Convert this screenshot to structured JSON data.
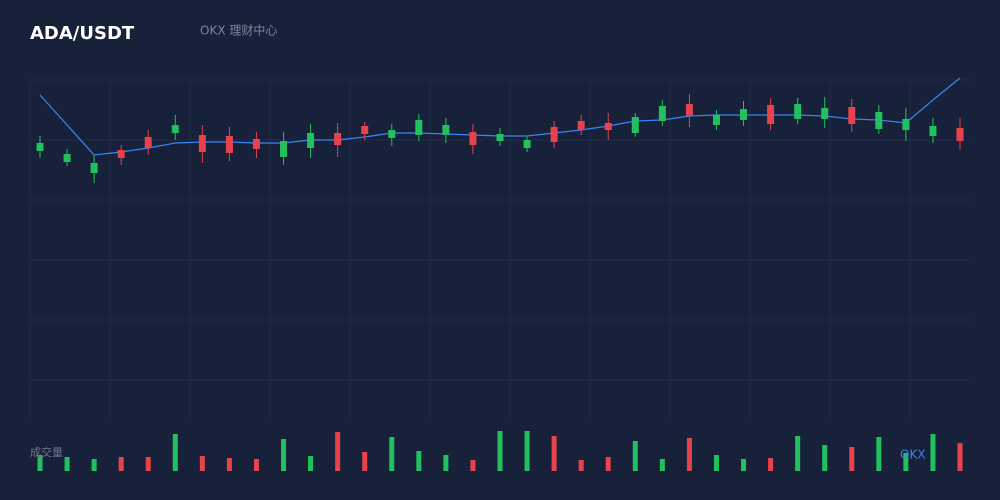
{
  "chart_data": {
    "type": "candlestick",
    "title": "ADA/USDT",
    "subtitle": "OKX 理财中心",
    "volume_label": "成交量",
    "watermark": "OKX",
    "up_color": "#22c15e",
    "down_color": "#e8424d",
    "line_color": "#3b82f6",
    "grid": true,
    "ylim": [
      0,
      340
    ],
    "vlim": [
      0,
      50
    ],
    "open": [
      269,
      258,
      247,
      270,
      283,
      287,
      285,
      284,
      281,
      263,
      272,
      287,
      294,
      282,
      285,
      285,
      288,
      279,
      272,
      293,
      299,
      297,
      287,
      299,
      316,
      295,
      300,
      315,
      301,
      301,
      313,
      291,
      290,
      284,
      292
    ],
    "high": [
      284,
      271,
      265,
      275,
      290,
      305,
      295,
      293,
      288,
      288,
      296,
      297,
      298,
      296,
      306,
      302,
      296,
      292,
      284,
      299,
      305,
      307,
      307,
      320,
      326,
      310,
      319,
      322,
      322,
      323,
      321,
      315,
      312,
      302,
      302
    ],
    "low": [
      262,
      254,
      237,
      255,
      265,
      280,
      257,
      259,
      262,
      255,
      262,
      263,
      280,
      274,
      279,
      277,
      266,
      274,
      268,
      272,
      285,
      280,
      283,
      294,
      293,
      290,
      294,
      290,
      296,
      292,
      288,
      286,
      279,
      277,
      270
    ],
    "close": [
      277,
      266,
      257,
      262,
      272,
      295,
      268,
      267,
      271,
      279,
      287,
      275,
      286,
      290,
      300,
      295,
      275,
      286,
      280,
      278,
      290,
      290,
      303,
      314,
      304,
      305,
      311,
      296,
      316,
      312,
      296,
      308,
      301,
      294,
      279
    ],
    "ma": [
      325,
      295,
      265,
      268,
      272,
      277,
      278,
      278,
      277,
      277,
      280,
      280,
      283,
      287,
      287,
      286,
      285,
      284,
      284,
      287,
      290,
      294,
      299,
      300,
      304,
      305,
      305,
      305,
      305,
      304,
      301,
      300,
      297,
      320,
      342
    ],
    "volume": [
      16,
      14,
      12,
      14,
      14,
      37,
      15,
      13,
      12,
      32,
      15,
      39,
      19,
      34,
      20,
      16,
      11,
      40,
      40,
      35,
      11,
      14,
      30,
      12,
      33,
      16,
      12,
      13,
      35,
      26,
      24,
      34,
      18,
      37,
      28
    ]
  }
}
